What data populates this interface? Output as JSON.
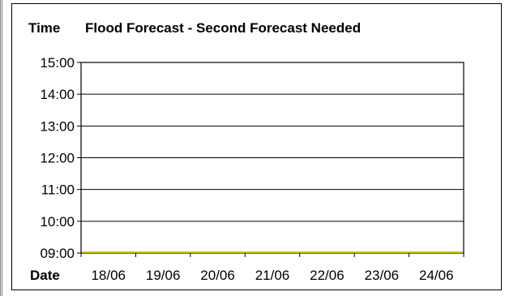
{
  "chart_data": {
    "type": "line",
    "title": "Flood Forecast - Second Forecast Needed",
    "ylabel": "Time",
    "xlabel": "Date",
    "categories": [
      "18/06",
      "19/06",
      "20/06",
      "21/06",
      "22/06",
      "23/06",
      "24/06"
    ],
    "y_ticks": [
      "09:00",
      "10:00",
      "11:00",
      "12:00",
      "13:00",
      "14:00",
      "15:00"
    ],
    "ylim": [
      "09:00",
      "15:00"
    ],
    "series": [
      {
        "values": [
          "09:00",
          "09:00",
          "09:00",
          "09:00",
          "09:00",
          "09:00",
          "09:00"
        ],
        "color": "#c8c800"
      }
    ],
    "grid": true,
    "legend": "none"
  }
}
